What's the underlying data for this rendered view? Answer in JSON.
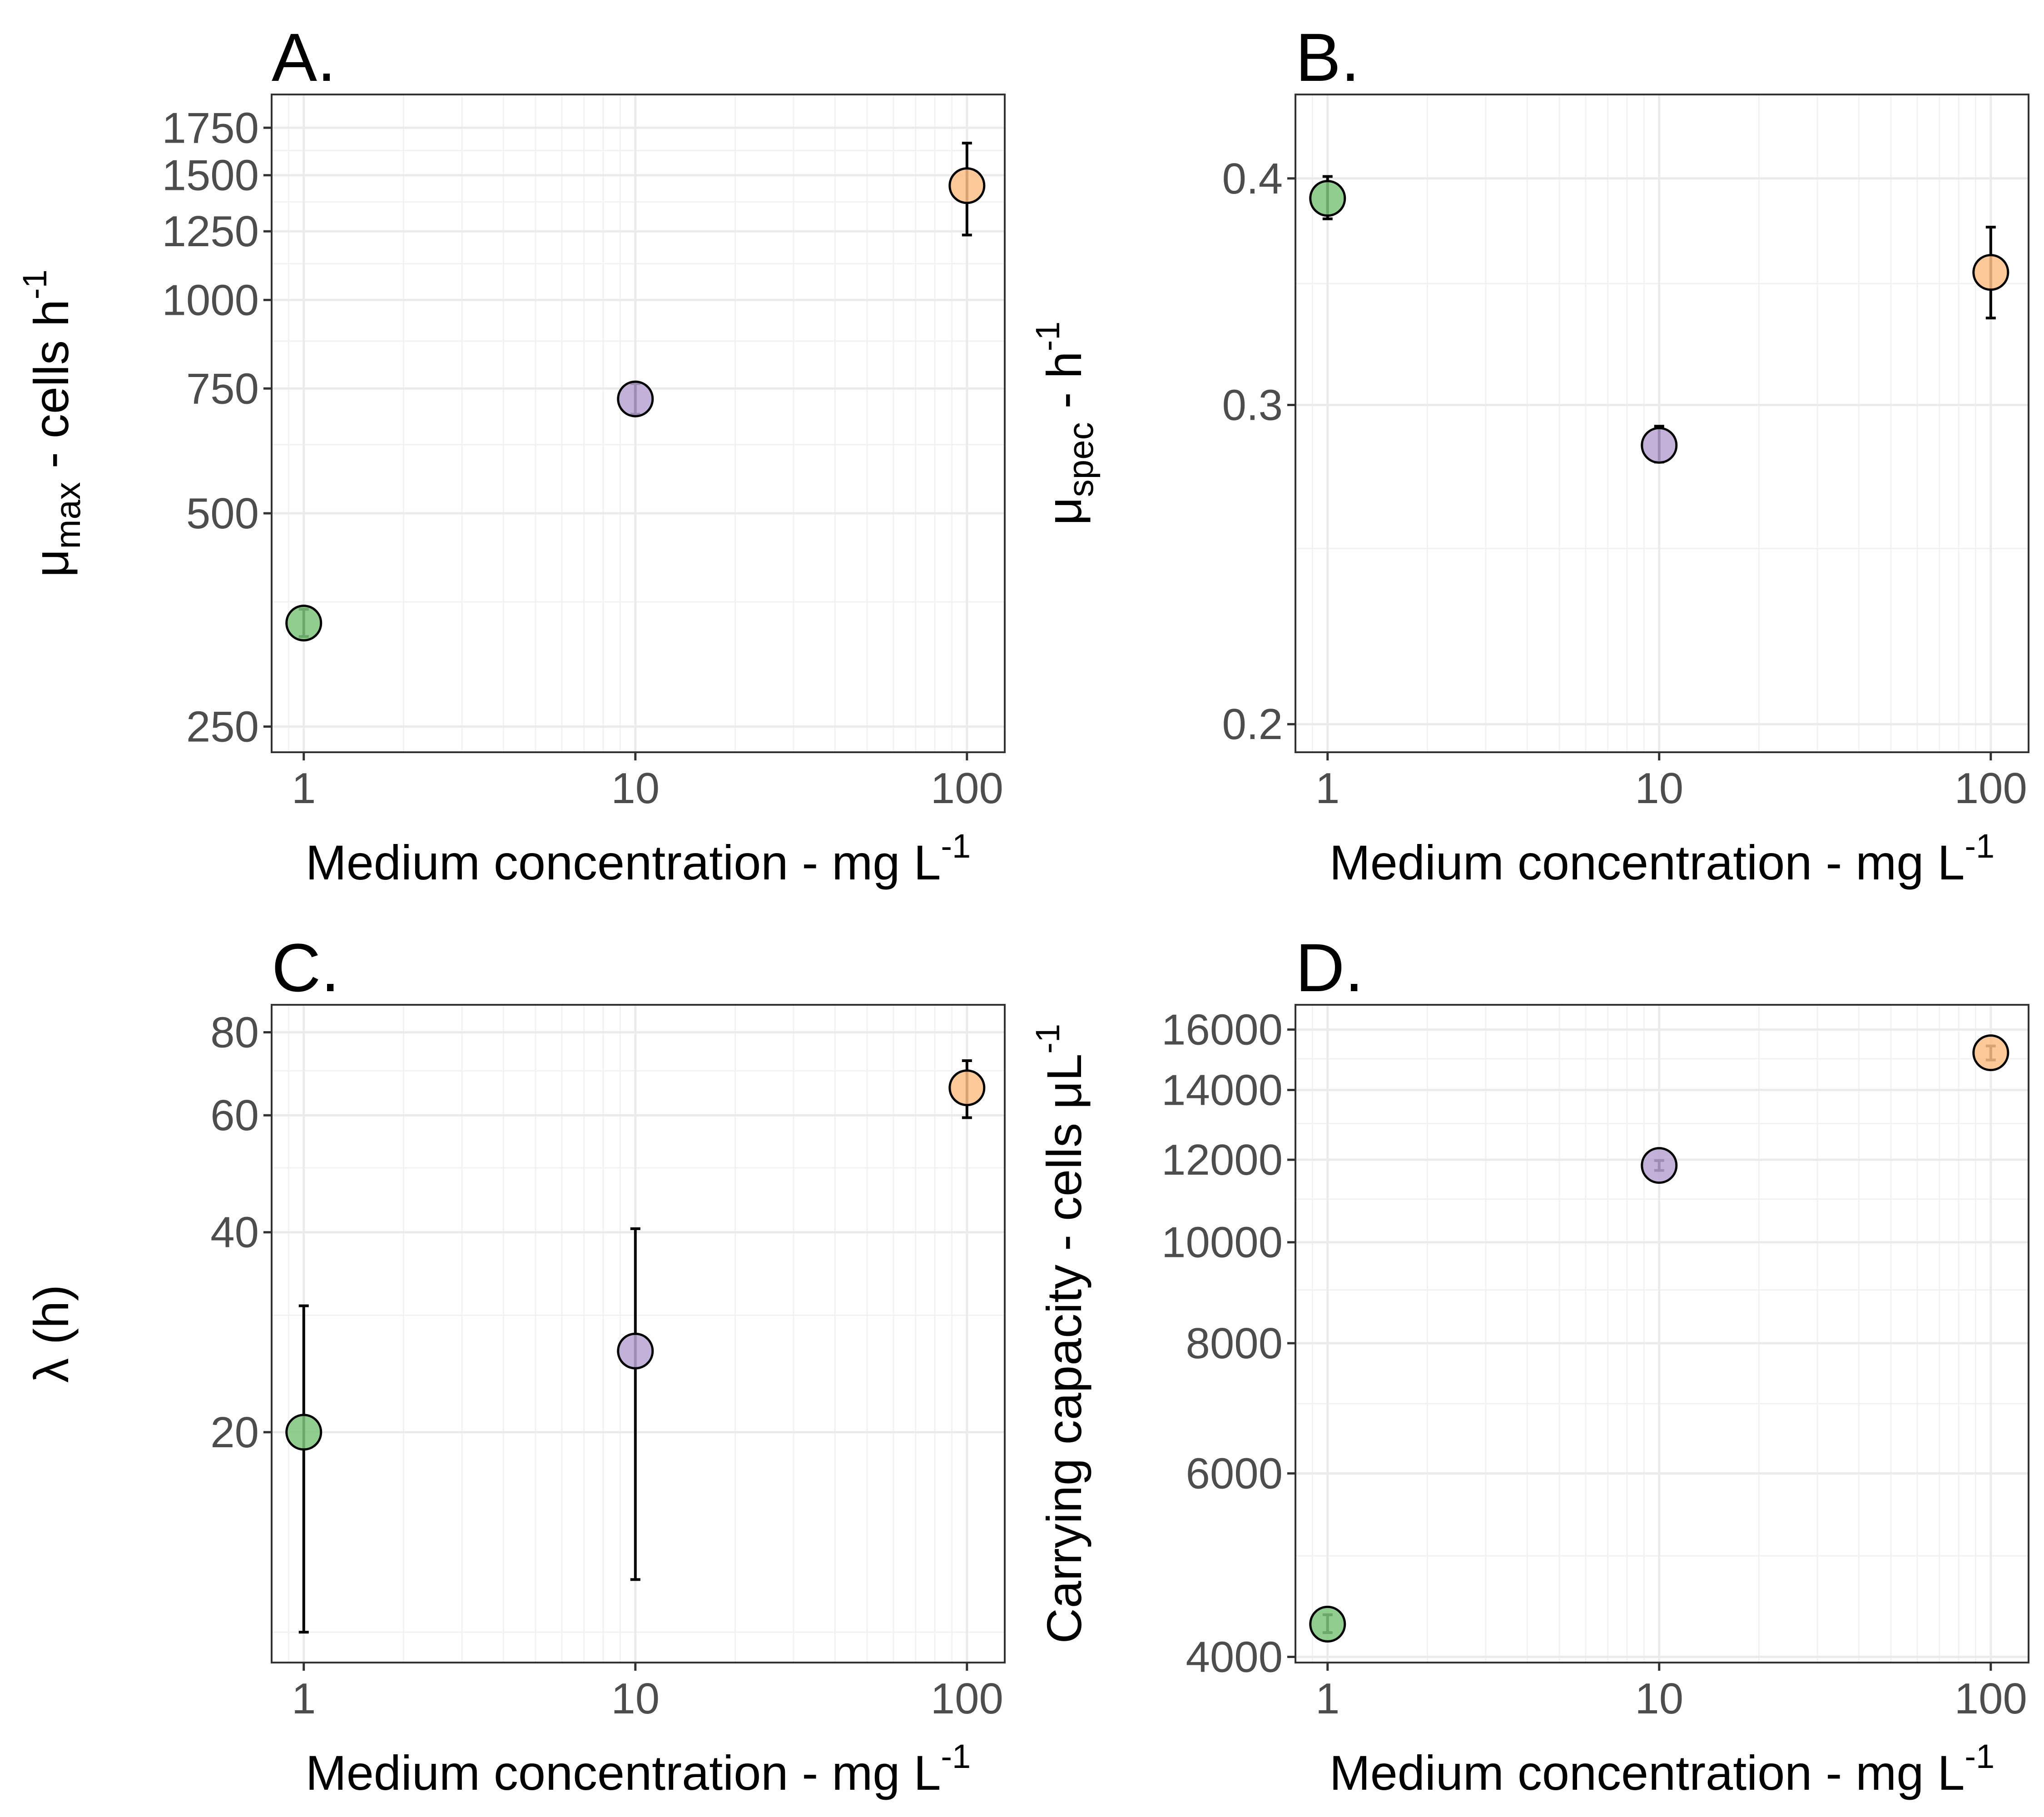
{
  "colors": {
    "1": "#7cc47a",
    "10": "#b7a5d3",
    "100": "#fdbf86"
  },
  "chart_data": [
    {
      "panel": "A.",
      "type": "scatter",
      "xlabel": "Medium concentration - mg L",
      "xlabel_sup": "-1",
      "ylabel_main": "μ",
      "ylabel_sub": "max",
      "ylabel_rest": " - cells h",
      "ylabel_sup": "-1",
      "xscale": "log",
      "yscale": "log",
      "xlim": [
        0.8,
        130
      ],
      "ylim": [
        230,
        1950
      ],
      "xticks": [
        1,
        10,
        100
      ],
      "xtick_labels": [
        "1",
        "10",
        "100"
      ],
      "yticks": [
        250,
        500,
        750,
        1000,
        1250,
        1500,
        1750
      ],
      "ytick_labels": [
        "250",
        "500",
        "750",
        "1000",
        "1250",
        "1500",
        "1750"
      ],
      "yminor": [
        375,
        625,
        875,
        1125,
        1375,
        1625
      ],
      "points": [
        {
          "x": 1,
          "y": 350,
          "lo": 335,
          "hi": 366
        },
        {
          "x": 10,
          "y": 725,
          "lo": 690,
          "hi": 762
        },
        {
          "x": 100,
          "y": 1450,
          "lo": 1235,
          "hi": 1665
        }
      ],
      "grid": true
    },
    {
      "panel": "B.",
      "type": "scatter",
      "xlabel": "Medium concentration - mg L",
      "xlabel_sup": "-1",
      "ylabel_main": "μ",
      "ylabel_sub": "spec",
      "ylabel_rest": " - h",
      "ylabel_sup": "-1",
      "xscale": "log",
      "yscale": "log",
      "xlim": [
        0.8,
        130
      ],
      "ylim": [
        0.193,
        0.445
      ],
      "xticks": [
        1,
        10,
        100
      ],
      "xtick_labels": [
        "1",
        "10",
        "100"
      ],
      "yticks": [
        0.2,
        0.3,
        0.4
      ],
      "ytick_labels": [
        "0.2",
        "0.3",
        "0.4"
      ],
      "yminor": [
        0.25,
        0.35
      ],
      "points": [
        {
          "x": 1,
          "y": 0.39,
          "lo": 0.38,
          "hi": 0.401
        },
        {
          "x": 10,
          "y": 0.285,
          "lo": 0.279,
          "hi": 0.292
        },
        {
          "x": 100,
          "y": 0.355,
          "lo": 0.335,
          "hi": 0.376
        }
      ],
      "grid": true
    },
    {
      "panel": "C.",
      "type": "scatter",
      "xlabel": "Medium concentration - mg L",
      "xlabel_sup": "-1",
      "ylabel_main": "λ (h)",
      "ylabel_sub": "",
      "ylabel_rest": "",
      "ylabel_sup": "",
      "xscale": "log",
      "yscale": "log",
      "xlim": [
        0.8,
        130
      ],
      "ylim": [
        9,
        88
      ],
      "xticks": [
        1,
        10,
        100
      ],
      "xtick_labels": [
        "1",
        "10",
        "100"
      ],
      "yticks": [
        20,
        40,
        60,
        80
      ],
      "ytick_labels": [
        "20",
        "40",
        "60",
        "80"
      ],
      "yminor": [
        10,
        30,
        50,
        70
      ],
      "points": [
        {
          "x": 1,
          "y": 20,
          "lo": 10,
          "hi": 31
        },
        {
          "x": 10,
          "y": 26.5,
          "lo": 12,
          "hi": 40.5
        },
        {
          "x": 100,
          "y": 66,
          "lo": 59.5,
          "hi": 72.5
        }
      ],
      "grid": true
    },
    {
      "panel": "D.",
      "type": "scatter",
      "xlabel": "Medium concentration - mg L",
      "xlabel_sup": "-1",
      "ylabel_main": "Carrying capacity - cells μL",
      "ylabel_sub": "",
      "ylabel_rest": "",
      "ylabel_sup": "-1",
      "xscale": "log",
      "yscale": "log",
      "xlim": [
        0.8,
        130
      ],
      "ylim": [
        3950,
        16900
      ],
      "xticks": [
        1,
        10,
        100
      ],
      "xtick_labels": [
        "1",
        "10",
        "100"
      ],
      "yticks": [
        4000,
        6000,
        8000,
        10000,
        12000,
        14000,
        16000
      ],
      "ytick_labels": [
        "4000",
        "6000",
        "8000",
        "10000",
        "12000",
        "14000",
        "16000"
      ],
      "yminor": [
        5000,
        7000,
        9000,
        11000,
        13000,
        15000
      ],
      "points": [
        {
          "x": 1,
          "y": 4300,
          "lo": 4220,
          "hi": 4390
        },
        {
          "x": 10,
          "y": 11850,
          "lo": 11720,
          "hi": 11980
        },
        {
          "x": 100,
          "y": 15200,
          "lo": 14960,
          "hi": 15430
        }
      ],
      "grid": true
    }
  ]
}
